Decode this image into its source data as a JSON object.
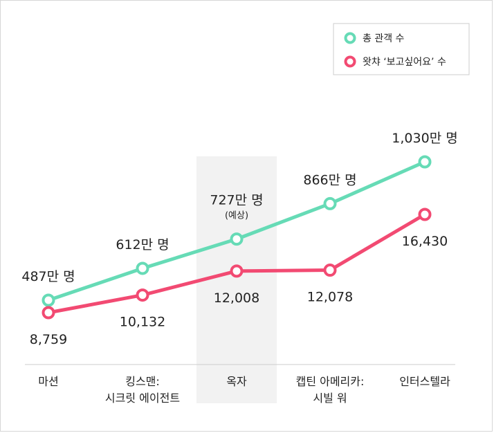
{
  "chart_data": {
    "type": "line",
    "categories": [
      [
        "마션"
      ],
      [
        "킹스맨:",
        "시크릿 에이전트"
      ],
      [
        "옥자"
      ],
      [
        "캡틴 아메리카:",
        "시빌 워"
      ],
      [
        "인터스텔라"
      ]
    ],
    "highlight_index": 2,
    "series": [
      {
        "name": "총 관객 수",
        "color": "#66dbb6",
        "values": [
          487,
          612,
          727,
          866,
          1030
        ],
        "labels": [
          "487만 명",
          "612만 명",
          "727만 명",
          "866만 명",
          "1,030만 명"
        ],
        "sublabels": [
          "",
          "",
          "(예상)",
          "",
          ""
        ]
      },
      {
        "name": "왓챠 ‘보고싶어요’ 수",
        "color": "#f24a72",
        "values": [
          8759,
          10132,
          12008,
          12078,
          16430
        ],
        "labels": [
          "8,759",
          "10,132",
          "12,008",
          "12,078",
          "16,430"
        ]
      }
    ]
  }
}
